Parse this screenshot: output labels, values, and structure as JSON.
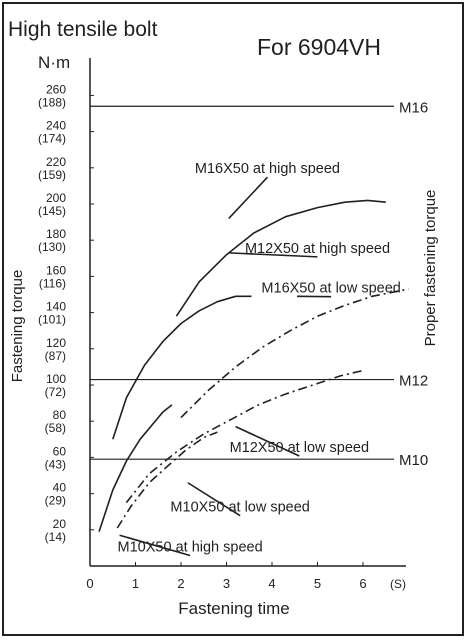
{
  "chart_data": {
    "type": "line",
    "title": "High tensile bolt",
    "subtitle": "For 6904VH",
    "xlabel": "Fastening time",
    "x_unit": "(S)",
    "ylabel": "Fastening torque",
    "y_unit": "N·m",
    "right_axis_label": "Proper fastening torque",
    "xlim": [
      0,
      7
    ],
    "ylim": [
      0,
      270
    ],
    "x_ticks": [
      "0",
      "1",
      "2",
      "3",
      "4",
      "5",
      "6"
    ],
    "y_ticks": [
      {
        "value": 260,
        "label": "260",
        "sub": "(188)"
      },
      {
        "value": 240,
        "label": "240",
        "sub": "(174)"
      },
      {
        "value": 220,
        "label": "220",
        "sub": "(159)"
      },
      {
        "value": 200,
        "label": "200",
        "sub": "(145)"
      },
      {
        "value": 180,
        "label": "180",
        "sub": "(130)"
      },
      {
        "value": 160,
        "label": "160",
        "sub": "(116)"
      },
      {
        "value": 140,
        "label": "140",
        "sub": "(101)"
      },
      {
        "value": 120,
        "label": "120",
        "sub": "(87)"
      },
      {
        "value": 100,
        "label": "100",
        "sub": "(72)"
      },
      {
        "value": 80,
        "label": "80",
        "sub": "(58)"
      },
      {
        "value": 60,
        "label": "60",
        "sub": "(43)"
      },
      {
        "value": 40,
        "label": "40",
        "sub": "(29)"
      },
      {
        "value": 20,
        "label": "20",
        "sub": "(14)"
      }
    ],
    "reference_lines": [
      {
        "name": "M16",
        "y": 254
      },
      {
        "name": "M12",
        "y": 103
      },
      {
        "name": "M10",
        "y": 59
      }
    ],
    "grid": false,
    "series": [
      {
        "name": "M16X50 at high speed",
        "dash": "solid",
        "x": [
          1.9,
          2.4,
          3.0,
          3.6,
          4.3,
          5.0,
          5.6,
          6.1,
          6.5
        ],
        "y": [
          138,
          157,
          172,
          184,
          193,
          198,
          201,
          202,
          201
        ],
        "label_x": 3.9,
        "label_y": 217,
        "pointer_x": 3.05,
        "pointer_y": 192
      },
      {
        "name": "M12X50 at high speed",
        "dash": "solid",
        "x": [
          0.5,
          0.8,
          1.2,
          1.6,
          2.0,
          2.4,
          2.8,
          3.2,
          3.55
        ],
        "y": [
          70,
          93,
          111,
          124,
          134,
          141,
          146,
          149,
          149
        ],
        "label_x": 5.0,
        "label_y": 173,
        "pointer_x": 3.05,
        "pointer_y": 173
      },
      {
        "name": "M16X50 at low speed",
        "dash": "dashdot",
        "x": [
          2.0,
          2.6,
          3.2,
          3.8,
          4.4,
          5.0,
          5.6,
          6.2,
          7.0
        ],
        "y": [
          82,
          97,
          110,
          121,
          130,
          138,
          144,
          149,
          153
        ],
        "label_x": 5.3,
        "label_y": 151,
        "pointer_x": 4.55,
        "pointer_y": 149
      },
      {
        "name": "M12X50 at low speed",
        "dash": "dashdot",
        "x": [
          0.8,
          1.3,
          1.9,
          2.5,
          3.1,
          3.7,
          4.3,
          4.9,
          5.5,
          6.0
        ],
        "y": [
          35,
          51,
          63,
          73,
          81,
          89,
          95,
          100,
          105,
          108
        ],
        "label_x": 4.6,
        "label_y": 63,
        "pointer_x": 3.2,
        "pointer_y": 77
      },
      {
        "name": "M10X50 at high speed",
        "dash": "solid",
        "x": [
          0.2,
          0.5,
          0.8,
          1.1,
          1.4,
          1.6,
          1.8
        ],
        "y": [
          19,
          42,
          58,
          70,
          79,
          85,
          89
        ],
        "label_x": 2.2,
        "label_y": 8,
        "pointer_x": 0.65,
        "pointer_y": 17
      },
      {
        "name": "M10X50 at low speed",
        "dash": "dashdot",
        "x": [
          0.6,
          0.9,
          1.3,
          1.7,
          2.1,
          2.5,
          2.8
        ],
        "y": [
          21,
          33,
          46,
          55,
          64,
          71,
          74
        ],
        "label_x": 3.3,
        "label_y": 30,
        "pointer_x": 2.15,
        "pointer_y": 46
      }
    ]
  }
}
